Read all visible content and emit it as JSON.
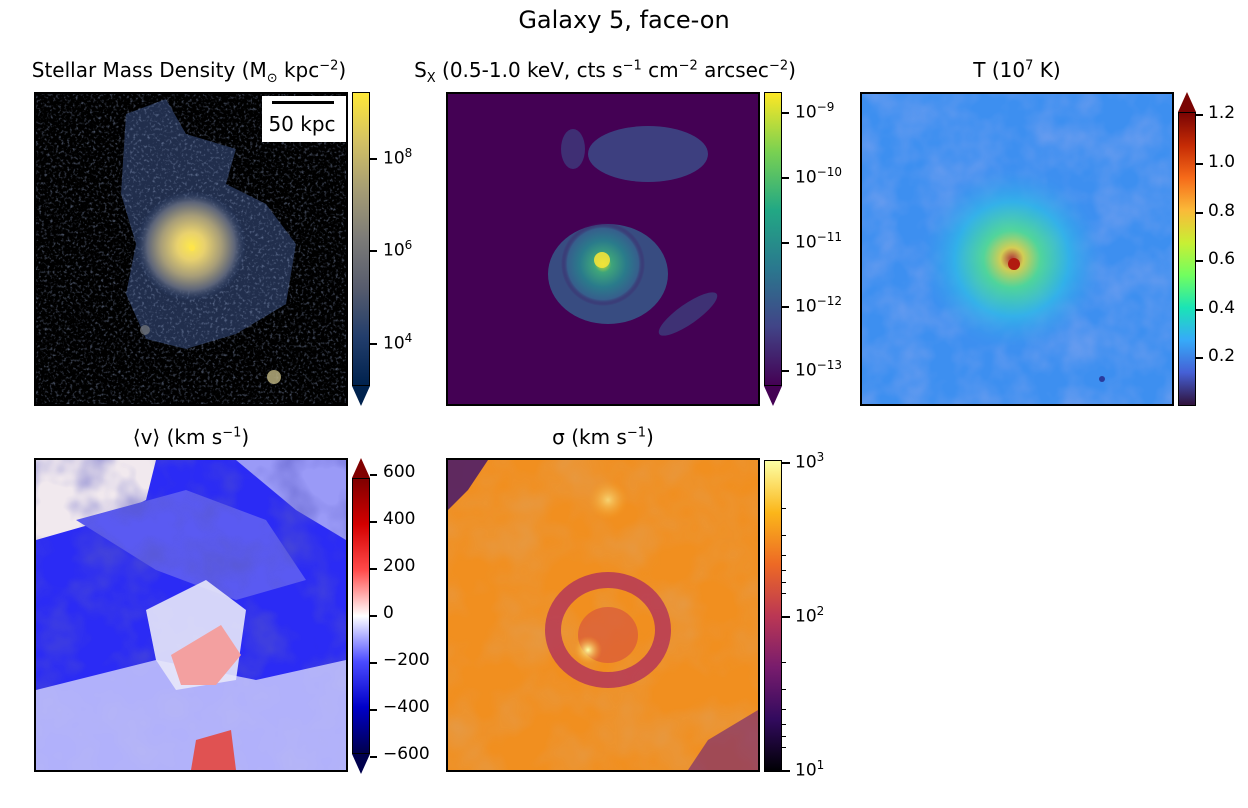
{
  "figure": {
    "title": "Galaxy 5, face-on"
  },
  "chart_data": [
    {
      "type": "heatmap",
      "id": "stellar",
      "title_main": "Stellar Mass Density (M",
      "title_sub": "⊙",
      "title_unit": " kpc",
      "title_sup": "−2",
      "title_close": ")",
      "scale": "log",
      "colormap": "cividis",
      "colorbar_extend": "min",
      "colorbar_ticks": [
        "10",
        "10",
        "10"
      ],
      "colorbar_exponents": [
        "8",
        "6",
        "4"
      ],
      "colorbar_values": [
        100000000.0,
        1000000.0,
        10000.0
      ],
      "scalebar_label": "50 kpc"
    },
    {
      "type": "heatmap",
      "id": "xray",
      "title_main": "S",
      "title_sub": "X",
      "title_rest": " (0.5-1.0 keV, cts s",
      "title_sup1": "−1",
      "title_mid": " cm",
      "title_sup2": "−2",
      "title_mid2": " arcsec",
      "title_sup3": "−2",
      "title_close": ")",
      "scale": "log",
      "colormap": "viridis",
      "colorbar_extend": "min",
      "colorbar_ticks": [
        "10",
        "10",
        "10",
        "10",
        "10"
      ],
      "colorbar_exponents": [
        "−9",
        "−10",
        "−11",
        "−12",
        "−13"
      ],
      "colorbar_values": [
        1e-09,
        1e-10,
        1e-11,
        1e-12,
        1e-13
      ]
    },
    {
      "type": "heatmap",
      "id": "temperature",
      "title_main": "T (10",
      "title_sup": "7",
      "title_close": " K)",
      "scale": "linear",
      "colormap": "turbo",
      "colorbar_extend": "max",
      "colorbar_ticks": [
        "1.2",
        "1.0",
        "0.8",
        "0.6",
        "0.4",
        "0.2"
      ],
      "colorbar_values": [
        1.2,
        1.0,
        0.8,
        0.6,
        0.4,
        0.2
      ]
    },
    {
      "type": "heatmap",
      "id": "velocity",
      "title_main": "⟨v⟩ (km s",
      "title_sup": "−1",
      "title_close": ")",
      "scale": "linear",
      "colormap": "seismic",
      "colorbar_extend": "both",
      "colorbar_ticks": [
        "600",
        "400",
        "200",
        "0",
        "−200",
        "−400",
        "−600"
      ],
      "colorbar_values": [
        600,
        400,
        200,
        0,
        -200,
        -400,
        -600
      ]
    },
    {
      "type": "heatmap",
      "id": "dispersion",
      "title_main": "σ (km s",
      "title_sup": "−1",
      "title_close": ")",
      "scale": "log",
      "colormap": "inferno",
      "colorbar_extend": "neither",
      "colorbar_ticks": [
        "10",
        "10",
        "10"
      ],
      "colorbar_exponents": [
        "3",
        "2",
        "1"
      ],
      "colorbar_values": [
        1000,
        100,
        10
      ]
    }
  ]
}
